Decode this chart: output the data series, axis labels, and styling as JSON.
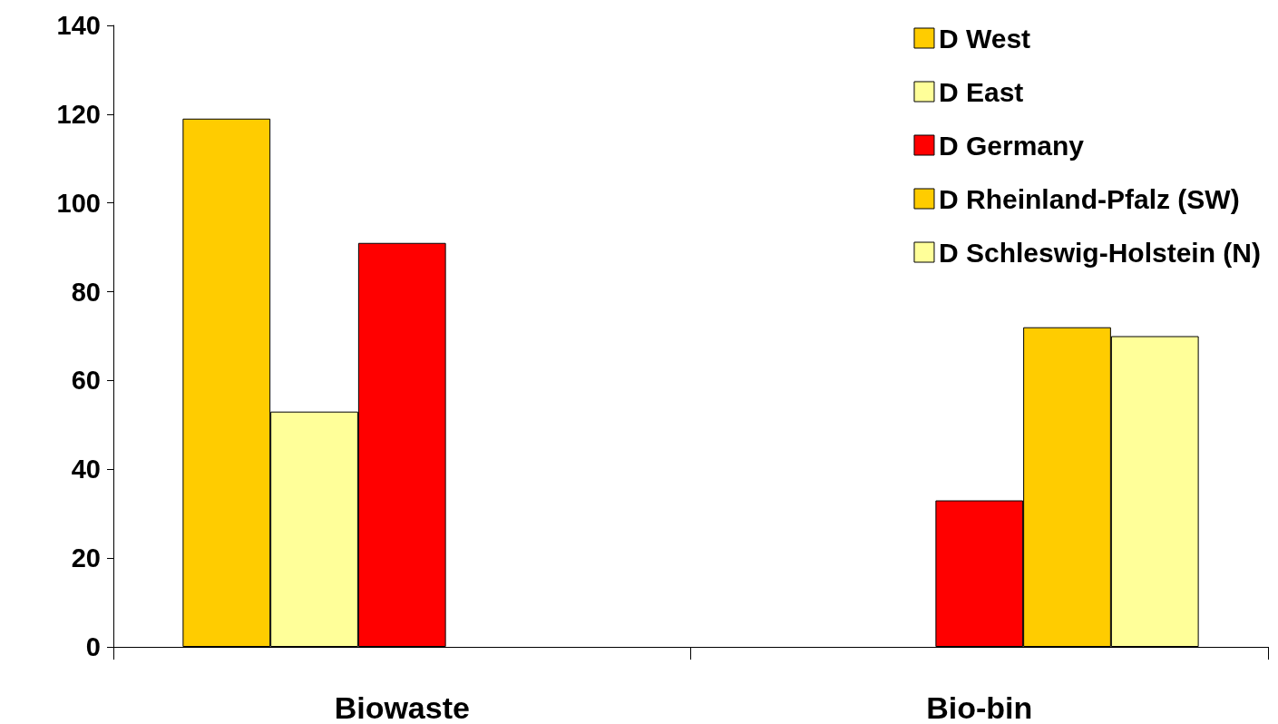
{
  "chart_data": {
    "type": "bar",
    "categories": [
      "Biowaste",
      "Bio-bin"
    ],
    "series": [
      {
        "name": "D West",
        "color": "#ffcc00",
        "values": [
          119,
          null
        ]
      },
      {
        "name": "D East",
        "color": "#ffff99",
        "values": [
          53,
          null
        ]
      },
      {
        "name": "D Germany",
        "color": "#ff0000",
        "values": [
          91,
          33
        ]
      },
      {
        "name": "D Rheinland-Pfalz (SW)",
        "color": "#ffcc00",
        "values": [
          null,
          72
        ]
      },
      {
        "name": "D Schleswig-Holstein (N)",
        "color": "#ffff99",
        "values": [
          null,
          70
        ]
      }
    ],
    "ylim": [
      0,
      140
    ],
    "yticks": [
      0,
      20,
      40,
      60,
      80,
      100,
      120,
      140
    ],
    "grid": false,
    "legend": "top right"
  }
}
